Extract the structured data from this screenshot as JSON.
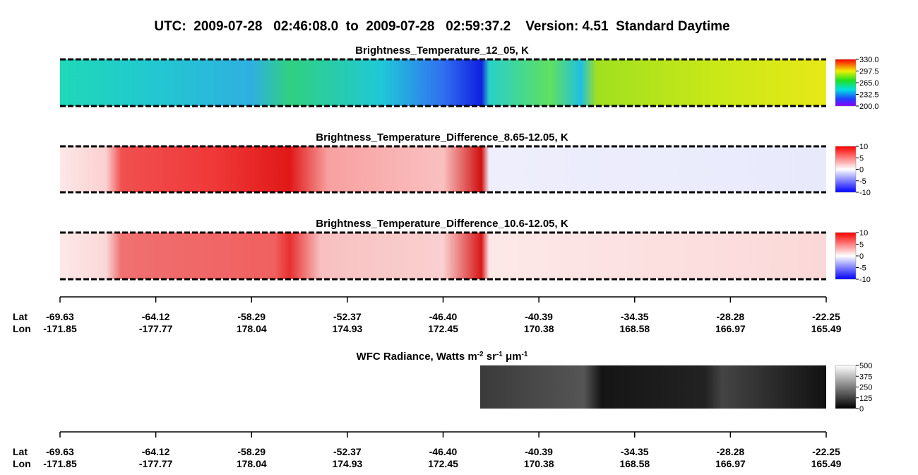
{
  "title": "UTC:  2009-07-28   02:46:08.0  to  2009-07-28   02:59:37.2    Version: 4.51  Standard Daytime",
  "panels": [
    {
      "title": "Brightness_Temperature_12_05, K",
      "colorbar": [
        "330.0",
        "297.5",
        "265.0",
        "232.5",
        "200.0"
      ]
    },
    {
      "title": "Brightness_Temperature_Difference_8.65-12.05, K",
      "colorbar": [
        "10",
        "5",
        "0",
        "-5",
        "-10"
      ]
    },
    {
      "title": "Brightness_Temperature_Difference_10.6-12.05, K",
      "colorbar": [
        "10",
        "5",
        "0",
        "-5",
        "-10"
      ]
    },
    {
      "title_parts": [
        "WFC Radiance, Watts m",
        "-2",
        " sr",
        "-1",
        " μm",
        "-1"
      ],
      "colorbar": [
        "500",
        "375",
        "250",
        "125",
        "0"
      ]
    }
  ],
  "axes": [
    {
      "lat_label": "Lat",
      "lon_label": "Lon",
      "lat": [
        "-69.63",
        "-64.12",
        "-58.29",
        "-52.37",
        "-46.40",
        "-40.39",
        "-34.35",
        "-28.28",
        "-22.25"
      ],
      "lon": [
        "-171.85",
        "-177.77",
        "178.04",
        "174.93",
        "172.45",
        "170.38",
        "168.58",
        "166.97",
        "165.49"
      ]
    },
    {
      "lat_label": "Lat",
      "lon_label": "Lon",
      "lat": [
        "-69.63",
        "-64.12",
        "-58.29",
        "-52.37",
        "-46.40",
        "-40.39",
        "-34.35",
        "-28.28",
        "-22.25"
      ],
      "lon": [
        "-171.85",
        "-177.77",
        "178.04",
        "174.93",
        "172.45",
        "170.38",
        "168.58",
        "166.97",
        "165.49"
      ]
    }
  ]
}
